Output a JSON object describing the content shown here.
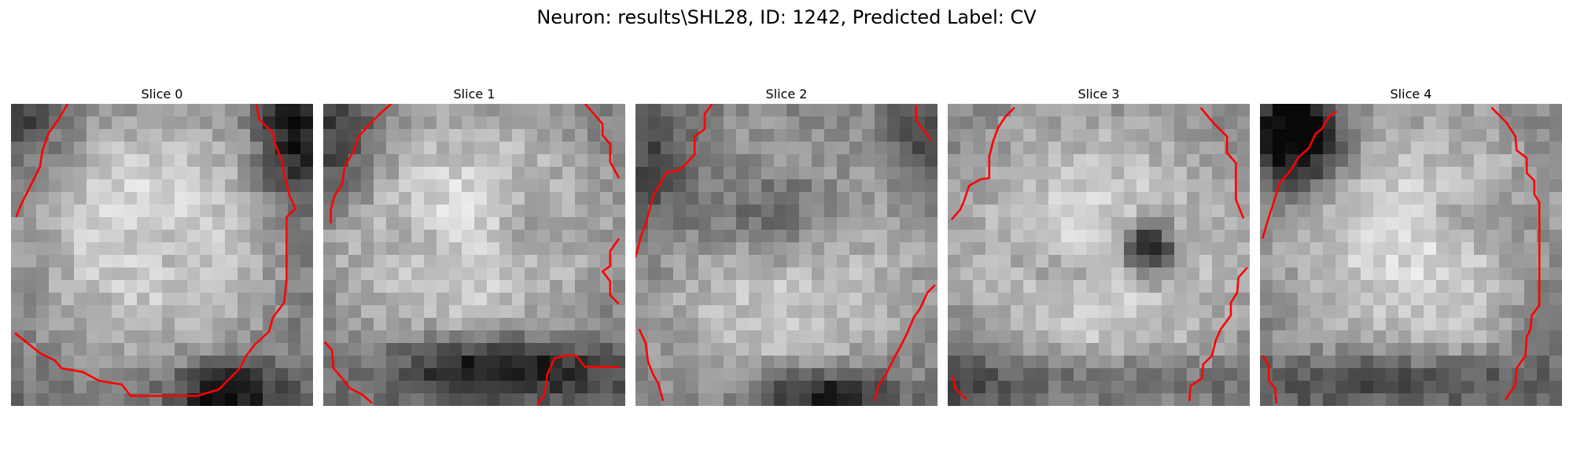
{
  "figure": {
    "title": "Neuron: results\\SHL28, ID: 1242, Predicted Label: CV"
  },
  "colors": {
    "contour": "#ff0000",
    "background": "#ffffff"
  },
  "panels": [
    {
      "title": "Slice 0",
      "image": "grayscale microscopy crop showing a bright round cell body with a red boundary contour along the right and bottom edges"
    },
    {
      "title": "Slice 1",
      "image": "grayscale microscopy crop showing a bright cell body with red contour segments at the corners"
    },
    {
      "title": "Slice 2",
      "image": "grayscale microscopy crop with a darker central region and red contour segments on the left and right edges"
    },
    {
      "title": "Slice 3",
      "image": "grayscale microscopy crop with a dark spot near the center and red contour segments on the sides"
    },
    {
      "title": "Slice 4",
      "image": "grayscale microscopy crop showing a bright cell body with red contour lines on the left and right"
    }
  ]
}
